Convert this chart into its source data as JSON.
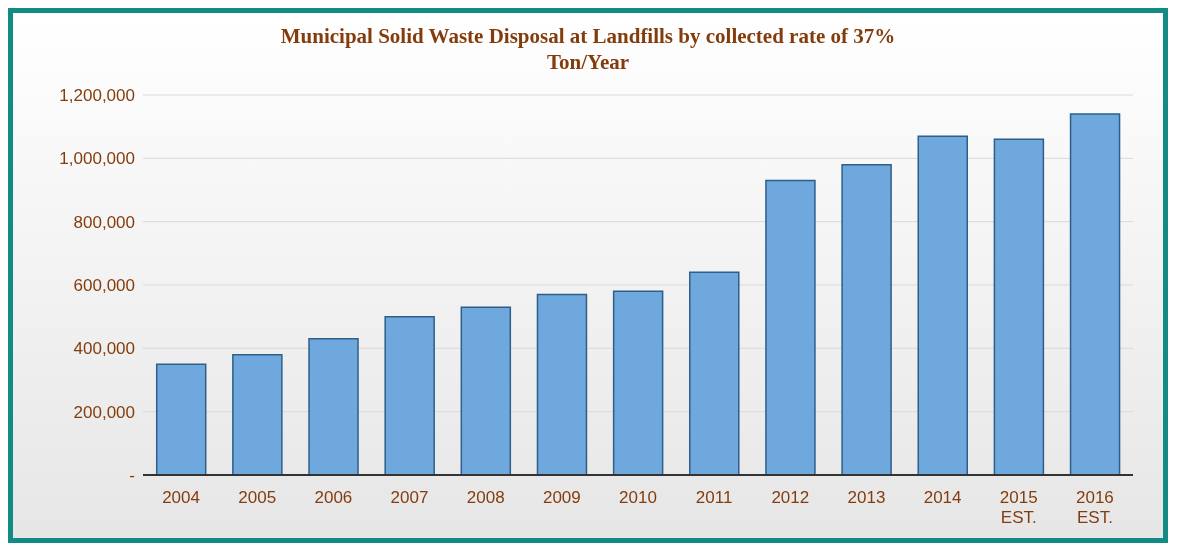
{
  "chart_data": {
    "type": "bar",
    "title": "Municipal Solid Waste Disposal at Landfills by collected rate of 37%",
    "subtitle": "Ton/Year",
    "categories": [
      "2004",
      "2005",
      "2006",
      "2007",
      "2008",
      "2009",
      "2010",
      "2011",
      "2012",
      "2013",
      "2014",
      "2015 EST.",
      "2016 EST."
    ],
    "values": [
      350000,
      380000,
      430000,
      500000,
      530000,
      570000,
      580000,
      640000,
      930000,
      980000,
      1070000,
      1060000,
      1140000
    ],
    "color": "#6fa8dc",
    "ylim": [
      0,
      1200000
    ],
    "yticks": [
      {
        "value": 0,
        "label": "-"
      },
      {
        "value": 200000,
        "label": "200,000"
      },
      {
        "value": 400000,
        "label": "400,000"
      },
      {
        "value": 600000,
        "label": "600,000"
      },
      {
        "value": 800000,
        "label": "800,000"
      },
      {
        "value": 1000000,
        "label": "1,000,000"
      },
      {
        "value": 1200000,
        "label": "1,200,000"
      }
    ],
    "grid": "y"
  }
}
